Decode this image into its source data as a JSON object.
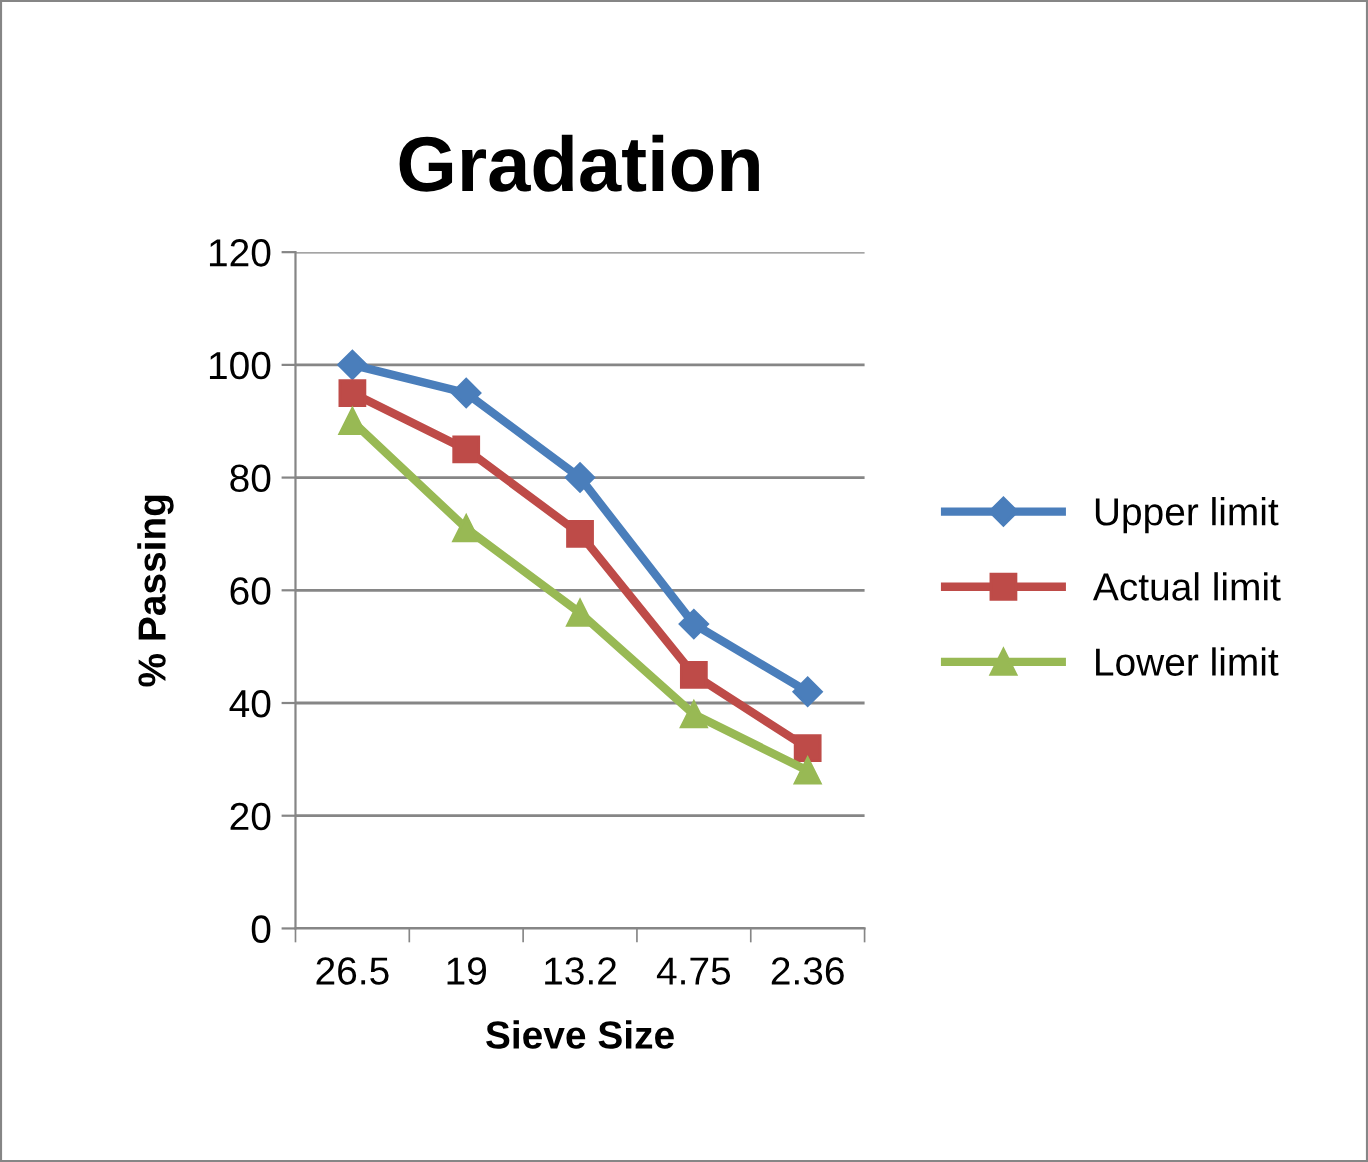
{
  "chart_data": {
    "type": "line",
    "title": "Gradation",
    "xlabel": "Sieve Size",
    "ylabel": "% Passing",
    "categories": [
      "26.5",
      "19",
      "13.2",
      "4.75",
      "2.36"
    ],
    "series": [
      {
        "name": "Upper limit",
        "color": "#4a7ebb",
        "marker": "diamond",
        "values": [
          100,
          95,
          80,
          54,
          42
        ]
      },
      {
        "name": "Actual limit",
        "color": "#be4b48",
        "marker": "square",
        "values": [
          95,
          85,
          70,
          45,
          32
        ]
      },
      {
        "name": "Lower limit",
        "color": "#98b954",
        "marker": "triangle",
        "values": [
          90,
          71,
          56,
          38,
          28
        ]
      }
    ],
    "ylim": [
      0,
      120
    ],
    "yticks": [
      0,
      20,
      40,
      60,
      80,
      100,
      120
    ],
    "grid": "y",
    "legend": "right",
    "line_style": "solid"
  }
}
